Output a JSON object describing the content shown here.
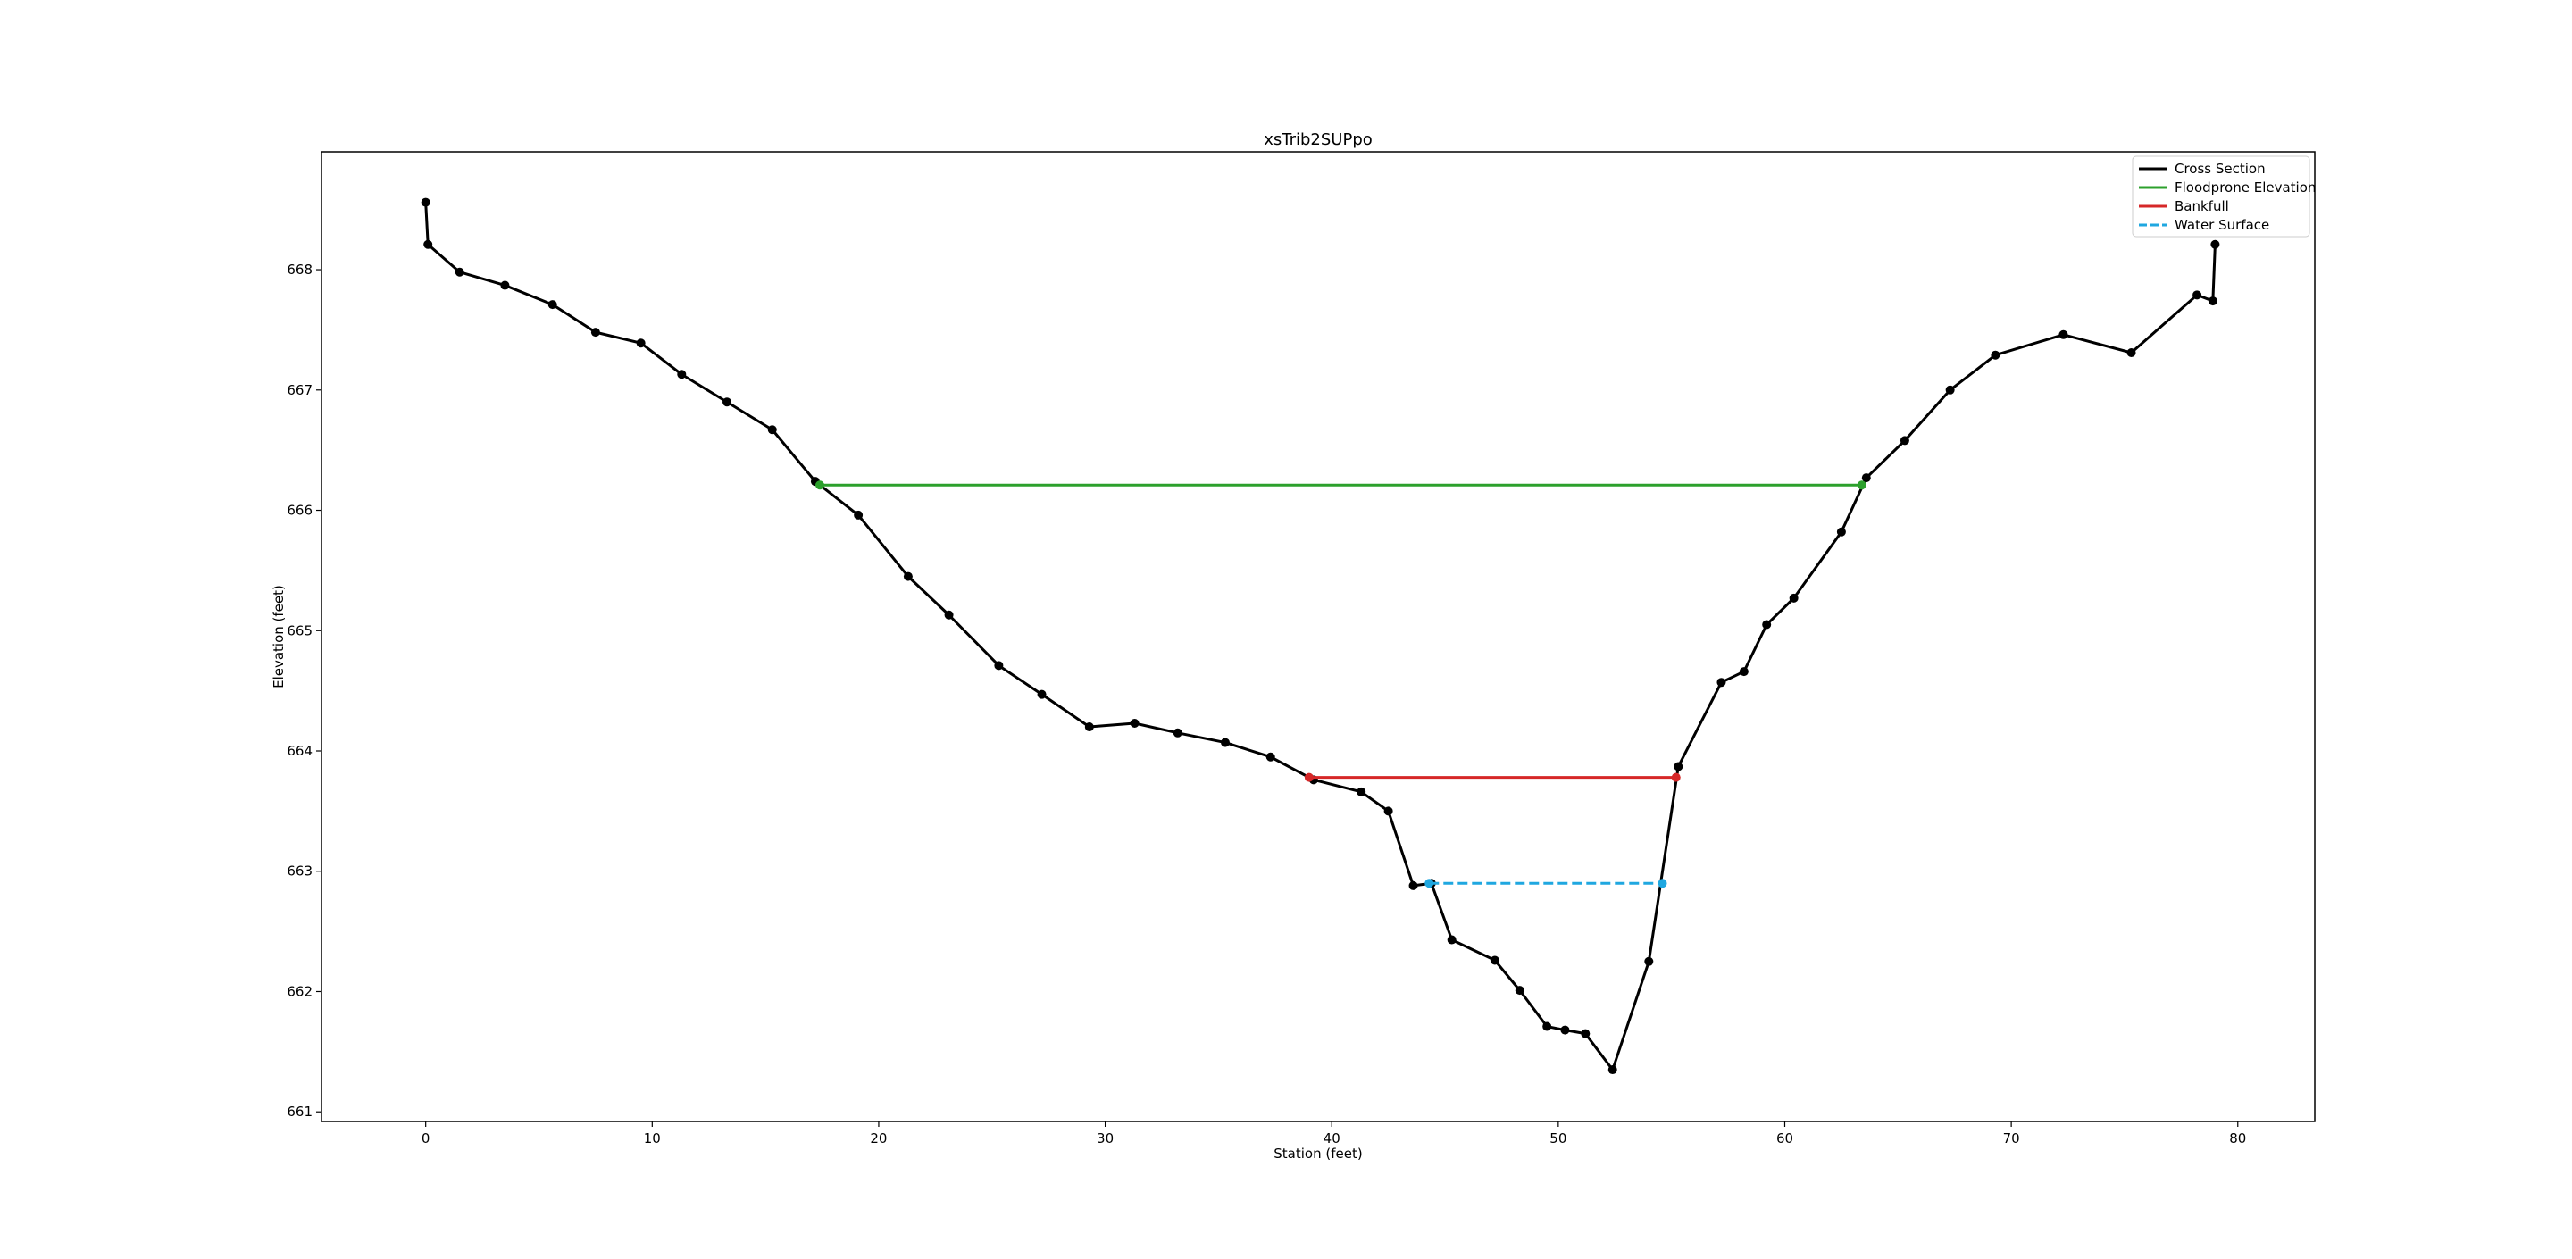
{
  "chart_data": {
    "type": "line",
    "title": "xsTrib2SUPpo",
    "xlabel": "Station (feet)",
    "ylabel": "Elevation (feet)",
    "xlim": [
      -4.6,
      83.4
    ],
    "ylim": [
      660.92,
      668.98
    ],
    "xticks": [
      0,
      10,
      20,
      30,
      40,
      50,
      60,
      70,
      80
    ],
    "yticks": [
      661,
      662,
      663,
      664,
      665,
      666,
      667,
      668
    ],
    "grid": false,
    "legend_position": "top-right",
    "series": [
      {
        "name": "Cross Section",
        "color": "#000000",
        "style": "solid",
        "markers": true,
        "points": [
          [
            0.0,
            668.56
          ],
          [
            0.1,
            668.21
          ],
          [
            1.5,
            667.98
          ],
          [
            3.5,
            667.87
          ],
          [
            5.6,
            667.71
          ],
          [
            7.5,
            667.48
          ],
          [
            9.5,
            667.39
          ],
          [
            11.3,
            667.13
          ],
          [
            13.3,
            666.9
          ],
          [
            15.3,
            666.67
          ],
          [
            17.2,
            666.24
          ],
          [
            19.1,
            665.96
          ],
          [
            21.3,
            665.45
          ],
          [
            23.1,
            665.13
          ],
          [
            25.3,
            664.71
          ],
          [
            27.2,
            664.47
          ],
          [
            29.3,
            664.2
          ],
          [
            31.3,
            664.23
          ],
          [
            33.2,
            664.15
          ],
          [
            35.3,
            664.07
          ],
          [
            37.3,
            663.95
          ],
          [
            39.2,
            663.76
          ],
          [
            41.3,
            663.66
          ],
          [
            42.5,
            663.5
          ],
          [
            43.6,
            662.88
          ],
          [
            44.4,
            662.9
          ],
          [
            45.3,
            662.43
          ],
          [
            47.2,
            662.26
          ],
          [
            48.3,
            662.01
          ],
          [
            49.5,
            661.71
          ],
          [
            50.3,
            661.68
          ],
          [
            51.2,
            661.65
          ],
          [
            52.4,
            661.35
          ],
          [
            54.0,
            662.25
          ],
          [
            55.3,
            663.87
          ],
          [
            57.2,
            664.57
          ],
          [
            58.2,
            664.66
          ],
          [
            59.2,
            665.05
          ],
          [
            60.4,
            665.27
          ],
          [
            62.5,
            665.82
          ],
          [
            63.6,
            666.27
          ],
          [
            65.3,
            666.58
          ],
          [
            67.3,
            667.0
          ],
          [
            69.3,
            667.29
          ],
          [
            72.3,
            667.46
          ],
          [
            75.3,
            667.31
          ],
          [
            78.2,
            667.79
          ],
          [
            78.9,
            667.74
          ],
          [
            79.0,
            668.21
          ]
        ]
      },
      {
        "name": "Floodprone Elevation",
        "color": "#2ca02c",
        "style": "solid",
        "markers": "ends",
        "points": [
          [
            17.4,
            666.21
          ],
          [
            63.4,
            666.21
          ]
        ]
      },
      {
        "name": "Bankfull",
        "color": "#d62728",
        "style": "solid",
        "markers": "ends",
        "points": [
          [
            39.0,
            663.78
          ],
          [
            55.2,
            663.78
          ]
        ]
      },
      {
        "name": "Water Surface",
        "color": "#1fa7e0",
        "style": "dashed",
        "markers": "ends",
        "points": [
          [
            44.3,
            662.9
          ],
          [
            54.6,
            662.9
          ]
        ]
      }
    ]
  }
}
